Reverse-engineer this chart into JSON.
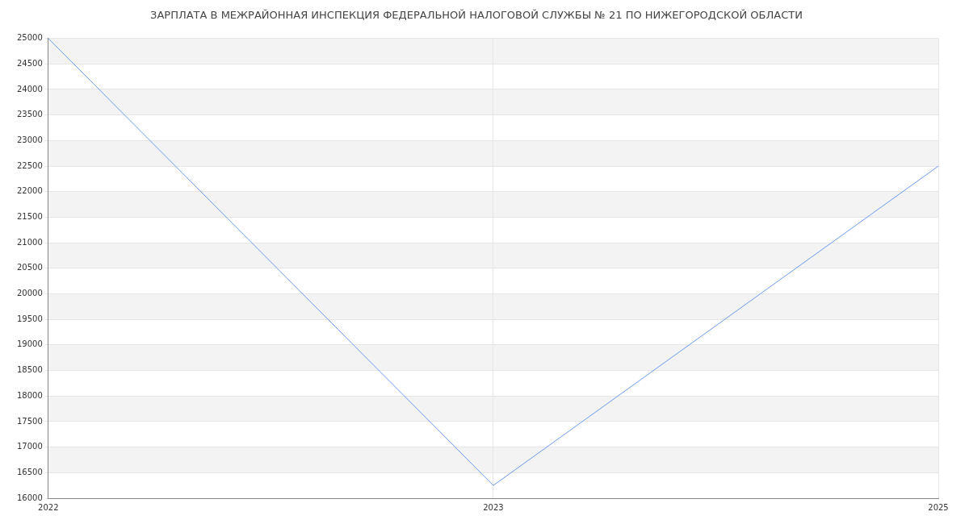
{
  "chart_data": {
    "type": "line",
    "title": "ЗАРПЛАТА В МЕЖРАЙОННАЯ ИНСПЕКЦИЯ ФЕДЕРАЛЬНОЙ НАЛОГОВОЙ СЛУЖБЫ № 21 ПО НИЖЕГОРОДСКОЙ ОБЛАСТИ",
    "categories": [
      "2022",
      "2023",
      "2025"
    ],
    "series": [
      {
        "color": "#6b9bf2",
        "values": [
          25000,
          16250,
          22500
        ]
      }
    ],
    "ylim": [
      16000,
      25000
    ],
    "yticks": [
      16000,
      16500,
      17000,
      17500,
      18000,
      18500,
      19000,
      19500,
      20000,
      20500,
      21000,
      21500,
      22000,
      22500,
      23000,
      23500,
      24000,
      24500,
      25000
    ],
    "grid": true,
    "legend": false
  }
}
